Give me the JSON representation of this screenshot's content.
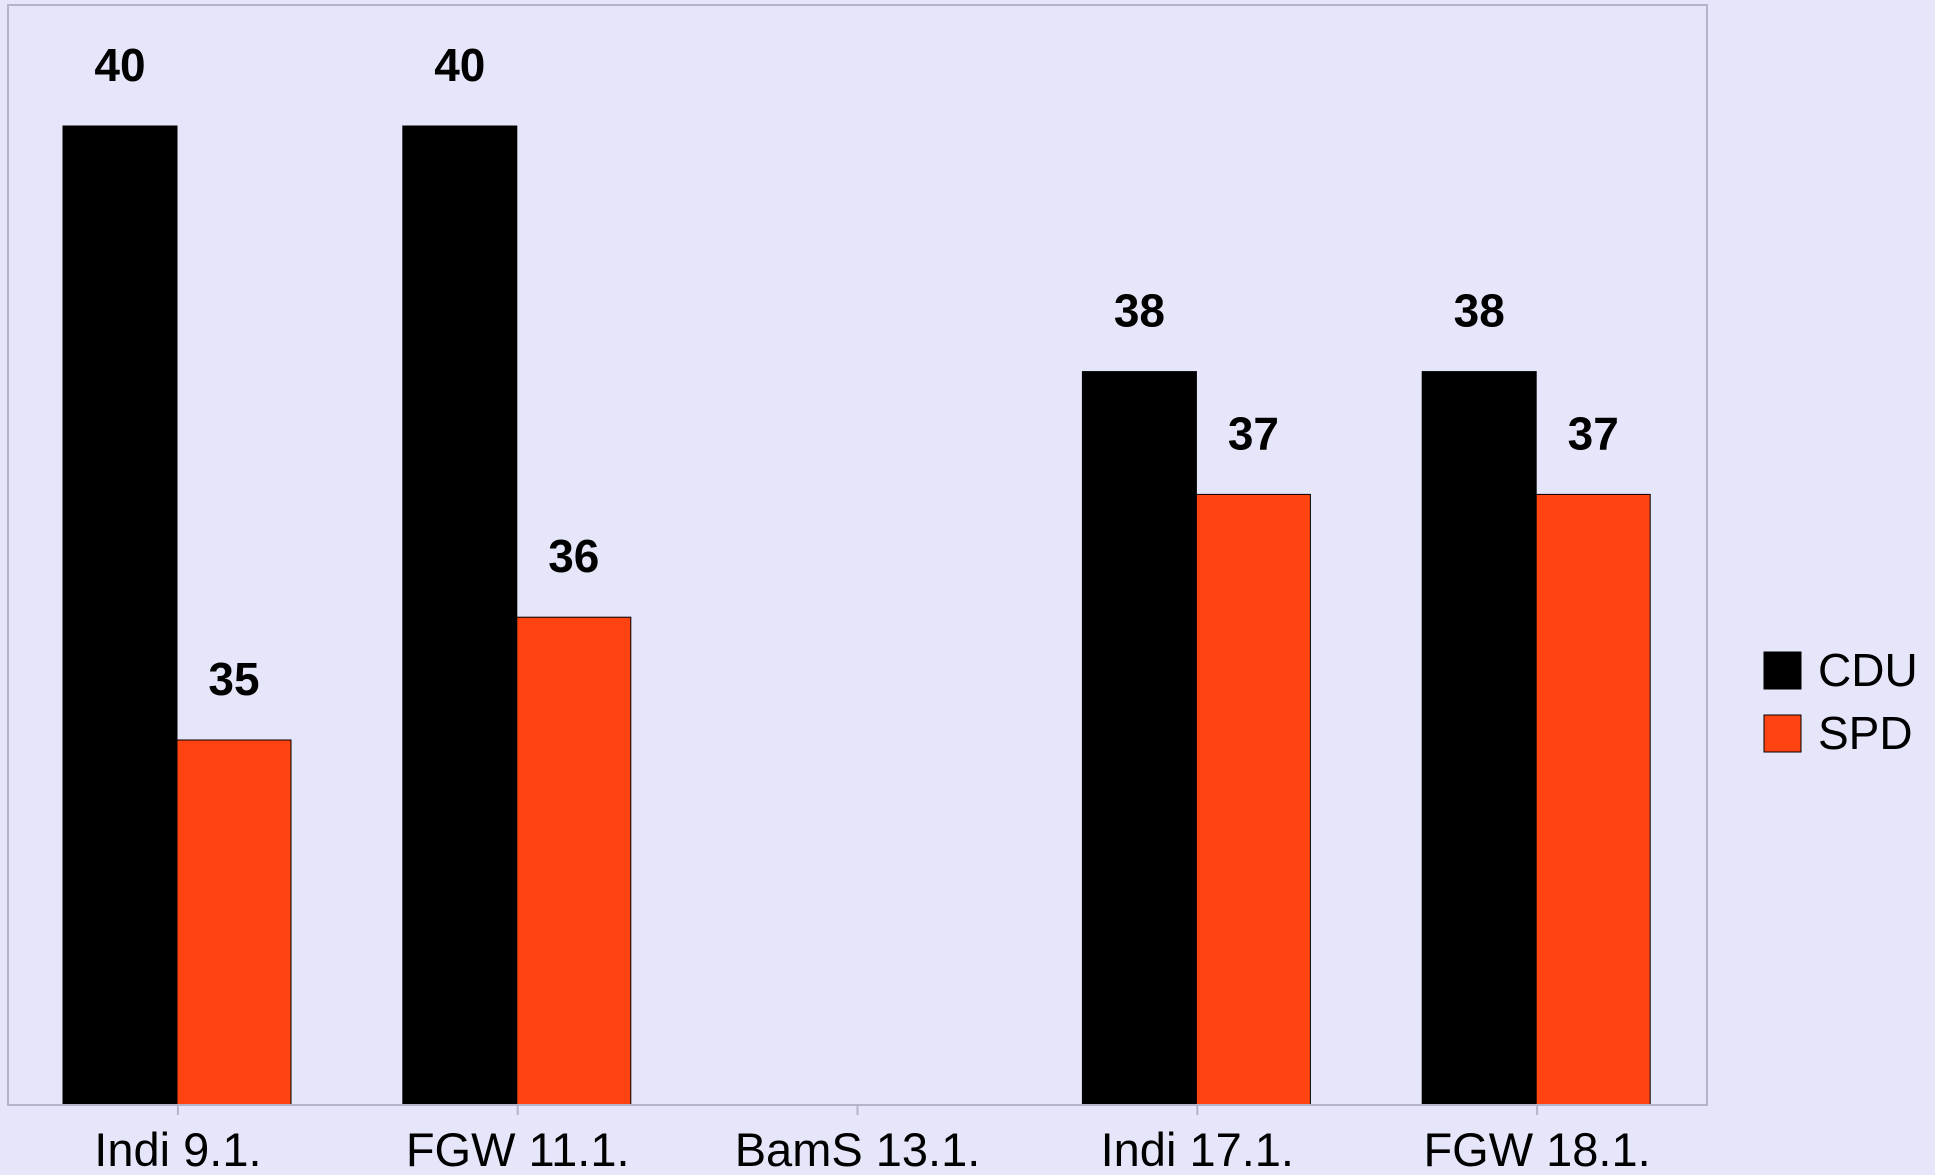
{
  "chart_data": {
    "type": "bar",
    "title": "",
    "xlabel": "",
    "ylabel": "",
    "ylim": [
      30,
      42
    ],
    "grid": false,
    "legend_position": "right",
    "categories": [
      "Indi 9.1.",
      "FGW 11.1.",
      "BamS 13.1.",
      "Indi 17.1.",
      "FGW 18.1."
    ],
    "series": [
      {
        "name": "CDU",
        "color": "#000000",
        "values": [
          40,
          40,
          null,
          38,
          38
        ]
      },
      {
        "name": "SPD",
        "color": "#FF4411",
        "values": [
          35,
          36,
          null,
          37,
          37
        ]
      }
    ]
  },
  "colors": {
    "background": "#E6E6FA",
    "axis": "#B3B3CC",
    "bar_border": "#000000"
  }
}
